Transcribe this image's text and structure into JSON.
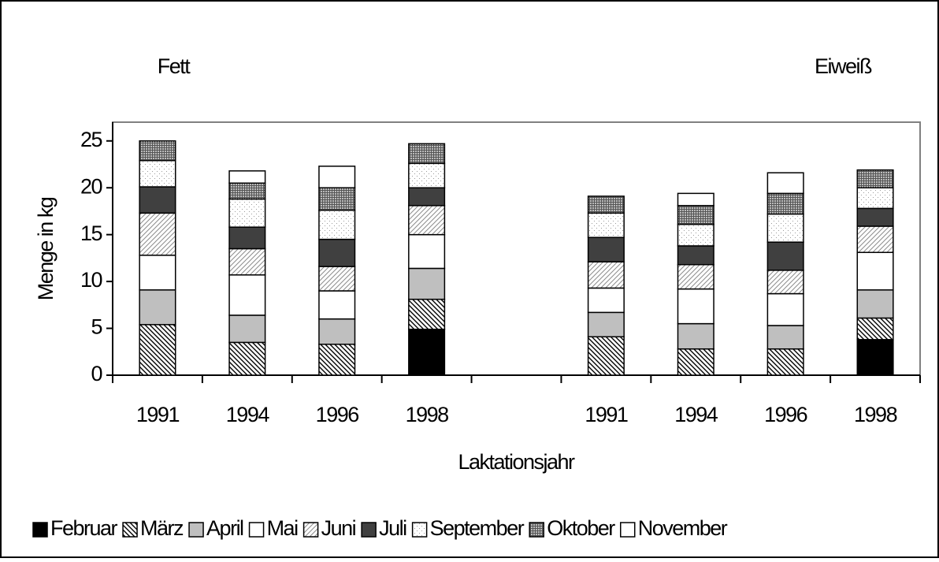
{
  "chart_data": {
    "type": "stacked-bar",
    "annotations": [
      "Fett",
      "Eiweiß"
    ],
    "y_label": "Menge in kg",
    "x_label": "Laktationsjahr",
    "categories": [
      "1991",
      "1994",
      "1996",
      "1998",
      null,
      "1991",
      "1994",
      "1996",
      "1998"
    ],
    "ylim": [
      0,
      27
    ],
    "yticks": [
      0,
      5,
      10,
      15,
      20,
      25
    ],
    "series": [
      {
        "name": "Februar",
        "color": "#000000",
        "pattern": "solid",
        "values": [
          0,
          0,
          0,
          4.9,
          null,
          0,
          0,
          0,
          3.8
        ]
      },
      {
        "name": "März",
        "color": "#000000",
        "pattern": "diagonal-dense",
        "values": [
          5.4,
          3.5,
          3.3,
          3.2,
          null,
          4.1,
          2.8,
          2.8,
          2.3
        ]
      },
      {
        "name": "April",
        "color": "#bfbfbf",
        "pattern": "solid",
        "values": [
          3.7,
          2.9,
          2.7,
          3.3,
          null,
          2.6,
          2.7,
          2.5,
          3.0
        ]
      },
      {
        "name": "Mai",
        "color": "#ffffff",
        "pattern": "solid",
        "values": [
          3.7,
          4.3,
          3.0,
          3.6,
          null,
          2.6,
          3.7,
          3.4,
          4.0
        ]
      },
      {
        "name": "Juni",
        "color": "#8c8c8c",
        "pattern": "diagonal-light",
        "values": [
          4.5,
          2.8,
          2.6,
          3.1,
          null,
          2.8,
          2.6,
          2.5,
          2.8
        ]
      },
      {
        "name": "Juli",
        "color": "#404040",
        "pattern": "solid",
        "values": [
          2.8,
          2.3,
          2.9,
          1.9,
          null,
          2.6,
          2.0,
          3.0,
          1.9
        ]
      },
      {
        "name": "September",
        "color": "#9a9a9a",
        "pattern": "dots",
        "values": [
          2.8,
          3.0,
          3.1,
          2.6,
          null,
          2.6,
          2.3,
          3.0,
          2.2
        ]
      },
      {
        "name": "Oktober",
        "color": "#555555",
        "pattern": "cross",
        "values": [
          2.1,
          1.7,
          2.4,
          2.1,
          null,
          1.8,
          2.0,
          2.2,
          1.9
        ]
      },
      {
        "name": "November",
        "color": "#ffffff",
        "pattern": "solid",
        "values": [
          0,
          1.3,
          2.3,
          0,
          null,
          0,
          1.3,
          2.2,
          0
        ]
      }
    ]
  }
}
